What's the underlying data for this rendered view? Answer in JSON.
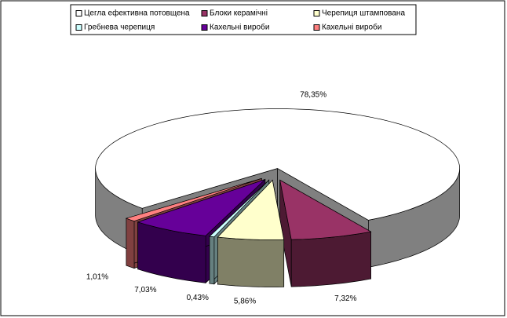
{
  "chart_data": {
    "type": "pie",
    "categories": [
      "Цегла ефективна потовщена",
      "Блоки керамічні",
      "Черепиця штампована",
      "Гребнева черепиця",
      "Кахельні вироби",
      "Кахельні вироби"
    ],
    "values": [
      78.35,
      7.32,
      5.86,
      0.43,
      7.03,
      1.01
    ],
    "value_labels": [
      "78,35%",
      "7,32%",
      "5,86%",
      "0,43%",
      "7,03%",
      "1,01%"
    ],
    "colors": [
      "#ffffff",
      "#993366",
      "#ffffcc",
      "#ccffff",
      "#660099",
      "#ff8080"
    ]
  }
}
